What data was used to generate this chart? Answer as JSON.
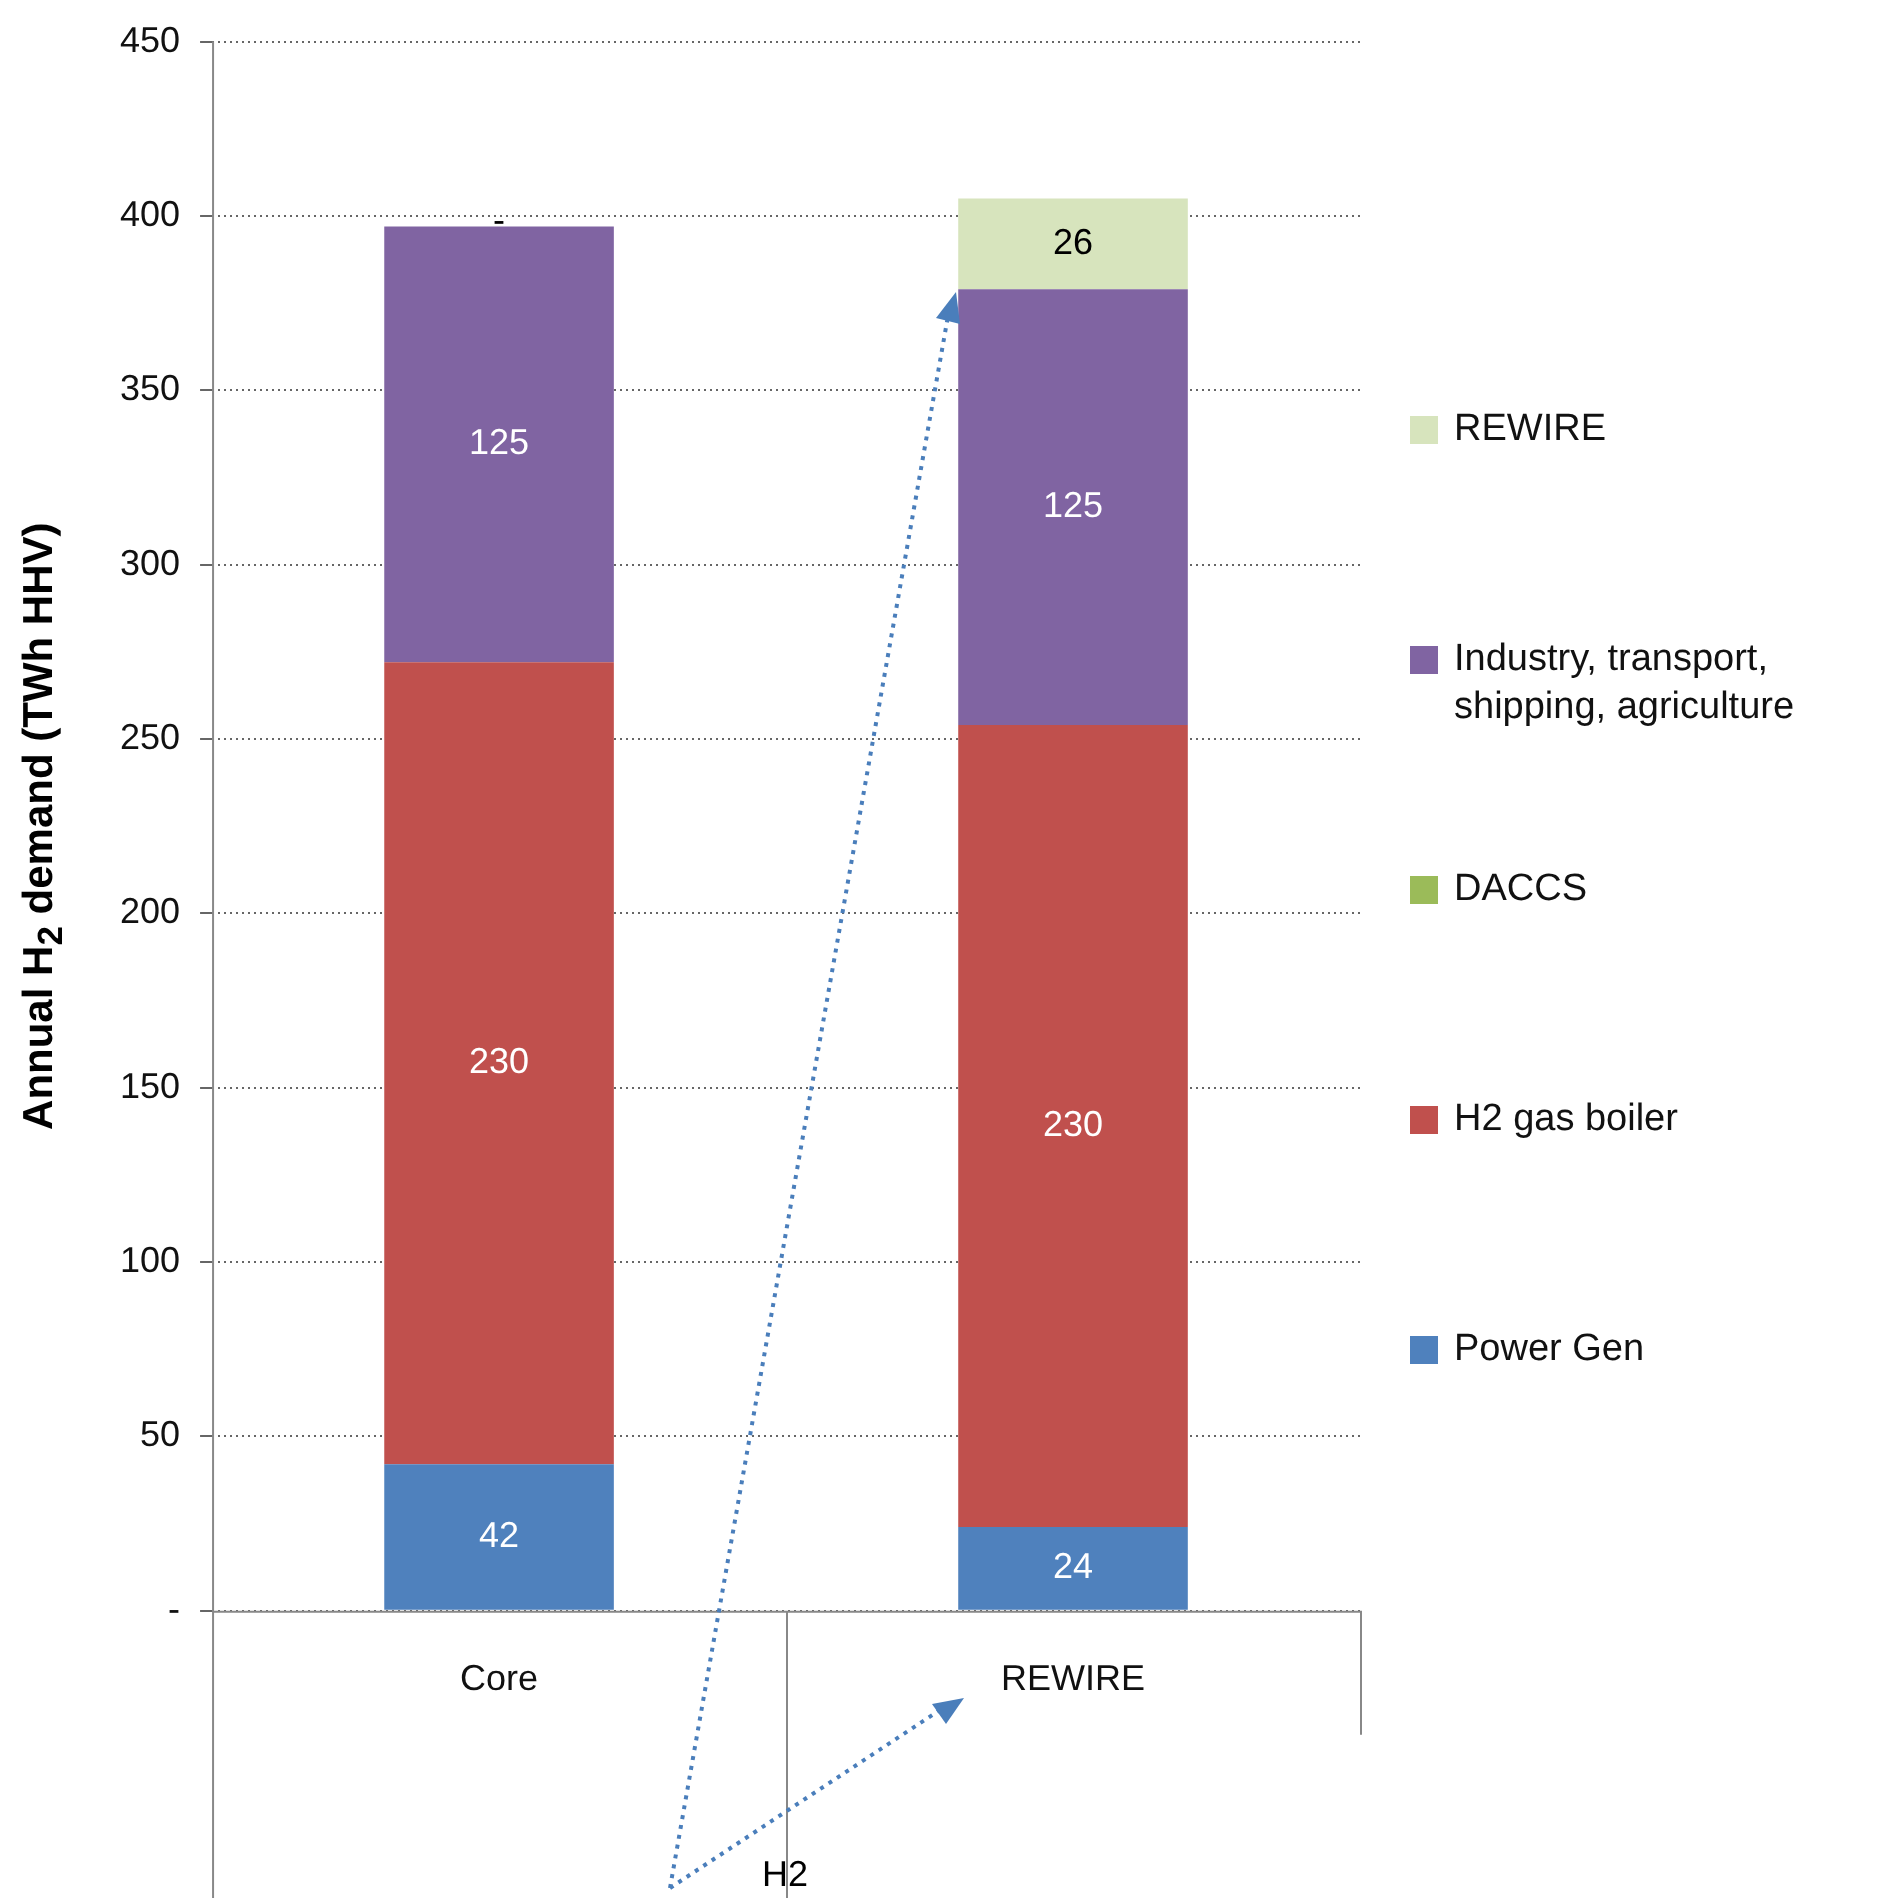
{
  "chart_data": {
    "type": "bar",
    "stacked": true,
    "categories": [
      "Core",
      "REWIRE"
    ],
    "ylabel": "Annual H$_{2}$ demand (TWh HHV)",
    "ylim": [
      0,
      450
    ],
    "yticks": [
      {
        "value": 0,
        "label": "-"
      },
      50,
      100,
      150,
      200,
      250,
      300,
      350,
      400,
      450
    ],
    "grid": "y",
    "legend": "right",
    "annotations": [
      "H2"
    ],
    "series": [
      {
        "name": "Power Gen",
        "color": "#4f81bd",
        "values": [
          42,
          24
        ],
        "value_labels": [
          "42",
          "24"
        ]
      },
      {
        "name": "H2 gas boiler",
        "color": "#c0504d",
        "values": [
          230,
          230
        ],
        "value_labels": [
          "230",
          "230"
        ]
      },
      {
        "name": "DACCS",
        "color": "#9bbb59",
        "values": [
          0,
          0
        ],
        "value_labels": [
          null,
          null
        ]
      },
      {
        "name": "Industry, transport, shipping, agriculture",
        "color": "#8064a2",
        "values": [
          125,
          125
        ],
        "value_labels": [
          "125",
          "125"
        ]
      },
      {
        "name": "REWIRE",
        "color": "#d7e4bd",
        "values": [
          0,
          26
        ],
        "value_labels": [
          "-",
          "26"
        ]
      }
    ]
  }
}
